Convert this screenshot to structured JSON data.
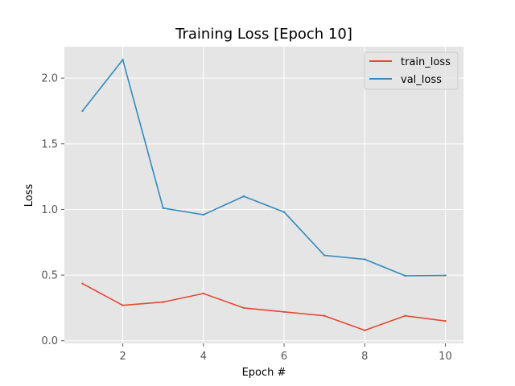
{
  "chart_data": {
    "type": "line",
    "title": "Training Loss [Epoch 10]",
    "xlabel": "Epoch #",
    "ylabel": "Loss",
    "xlim": [
      0.55,
      10.45
    ],
    "ylim": [
      -0.02,
      2.24
    ],
    "x_ticks": [
      2,
      4,
      6,
      8,
      10
    ],
    "y_ticks": [
      0.0,
      0.5,
      1.0,
      1.5,
      2.0
    ],
    "y_tick_labels": [
      "0.0",
      "0.5",
      "1.0",
      "1.5",
      "2.0"
    ],
    "grid": true,
    "legend_position": "top-right",
    "x": [
      1,
      2,
      3,
      4,
      5,
      6,
      7,
      8,
      9,
      10
    ],
    "series": [
      {
        "name": "train_loss",
        "color": "#E24A33",
        "values": [
          0.435,
          0.27,
          0.295,
          0.36,
          0.25,
          0.22,
          0.19,
          0.08,
          0.19,
          0.15
        ]
      },
      {
        "name": "val_loss",
        "color": "#348ABD",
        "values": [
          1.75,
          2.14,
          1.01,
          0.96,
          1.1,
          0.98,
          0.65,
          0.62,
          0.495,
          0.497
        ]
      }
    ],
    "plot_background": "#E5E5E5",
    "grid_color": "#FFFFFF"
  }
}
